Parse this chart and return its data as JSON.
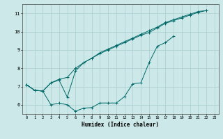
{
  "title": "",
  "xlabel": "Humidex (Indice chaleur)",
  "ylabel": "",
  "bg_color": "#cce8e8",
  "grid_color": "#aacece",
  "line_color": "#006868",
  "xlim": [
    -0.5,
    23.5
  ],
  "ylim": [
    5.5,
    11.5
  ],
  "xticks": [
    0,
    1,
    2,
    3,
    4,
    5,
    6,
    7,
    8,
    9,
    10,
    11,
    12,
    13,
    14,
    15,
    16,
    17,
    18,
    19,
    20,
    21,
    22,
    23
  ],
  "yticks": [
    6,
    7,
    8,
    9,
    10,
    11
  ],
  "line1_x": [
    0,
    1,
    2,
    3,
    4,
    5,
    6,
    7,
    8,
    9,
    10,
    11,
    12,
    13,
    14,
    15,
    16,
    17,
    18,
    19,
    20,
    21,
    22,
    23
  ],
  "line1_y": [
    7.1,
    6.8,
    6.75,
    7.2,
    7.4,
    7.5,
    8.0,
    8.3,
    8.55,
    8.8,
    9.0,
    9.2,
    9.4,
    9.6,
    9.8,
    9.95,
    10.2,
    10.45,
    10.6,
    10.75,
    10.9,
    11.05,
    11.15,
    null
  ],
  "line2_x": [
    0,
    1,
    2,
    3,
    4,
    5,
    6,
    7,
    8,
    9,
    10,
    11,
    12,
    13,
    14,
    15,
    16,
    17,
    18,
    19,
    20,
    21,
    22,
    23
  ],
  "line2_y": [
    7.1,
    6.8,
    6.75,
    6.0,
    6.1,
    6.0,
    5.65,
    5.82,
    5.85,
    6.1,
    6.1,
    6.1,
    6.45,
    7.15,
    7.2,
    8.3,
    9.2,
    9.4,
    9.75,
    null,
    null,
    null,
    null,
    null
  ],
  "line3_x": [
    0,
    1,
    2,
    3,
    4,
    5,
    6,
    7,
    8,
    9,
    10,
    11,
    12,
    13,
    14,
    15,
    16,
    17,
    18,
    19,
    20,
    21,
    22,
    23
  ],
  "line3_y": [
    7.1,
    6.8,
    6.75,
    7.2,
    7.35,
    6.42,
    7.85,
    8.3,
    8.55,
    8.85,
    9.05,
    9.25,
    9.45,
    9.65,
    9.85,
    10.05,
    10.25,
    10.5,
    10.65,
    10.8,
    10.95,
    11.1,
    11.15,
    null
  ]
}
